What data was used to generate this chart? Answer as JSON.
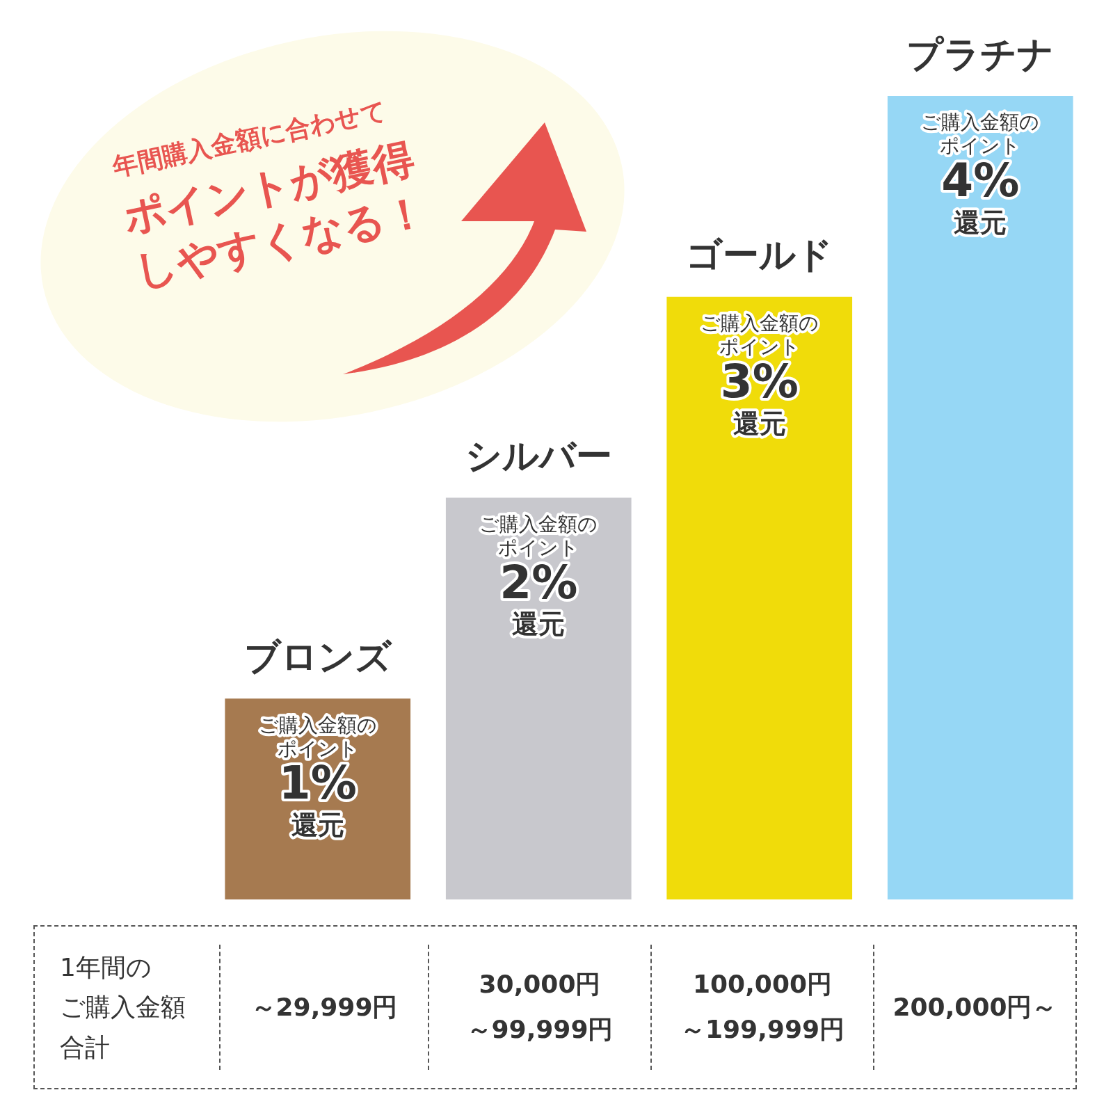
{
  "chart_data": {
    "type": "bar",
    "categories": [
      "ブロンズ",
      "シルバー",
      "ゴールド",
      "プラチナ"
    ],
    "values": [
      1,
      2,
      3,
      4
    ],
    "colors": [
      "#a67a50",
      "#c8c8cd",
      "#f0dc0a",
      "#96d7f5"
    ],
    "ylim": [
      0,
      4
    ],
    "tick_labels": false,
    "value_labels": [
      "1%",
      "2%",
      "3%",
      "4%"
    ],
    "annotations": [
      "年間購入金額に合わせて",
      "ポイントが獲得しやすくなる！",
      "ご購入金額のポイント",
      "還元",
      "ご購入金額のポイント",
      "還元",
      "ご購入金額のポイント",
      "還元",
      "ご購入金額のポイント",
      "還元",
      "1年間の",
      "ご購入金額",
      "合計",
      "～29,999円",
      "30,000円",
      "～99,999円",
      "100,000円",
      "～199,999円",
      "200,000円～"
    ]
  }
}
